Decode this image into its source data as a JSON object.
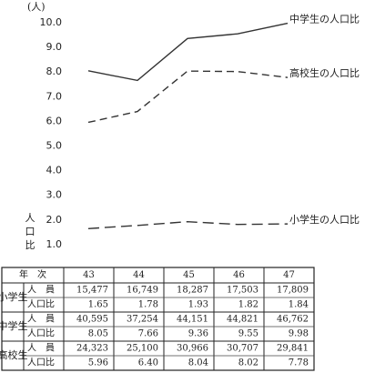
{
  "chart_data": {
    "type": "line",
    "y_unit": "(人)",
    "y_label": "人口比",
    "ylim": [
      0,
      10
    ],
    "yticks": [
      {
        "value": 1,
        "label": "1.0"
      },
      {
        "value": 2,
        "label": "2.0"
      },
      {
        "value": 3,
        "label": "3.0"
      },
      {
        "value": 4,
        "label": "4.0"
      },
      {
        "value": 5,
        "label": "5.0"
      },
      {
        "value": 6,
        "label": "6.0"
      },
      {
        "value": 7,
        "label": "7.0"
      },
      {
        "value": 8,
        "label": "8.0"
      },
      {
        "value": 9,
        "label": "9.0"
      },
      {
        "value": 10,
        "label": "10.0"
      }
    ],
    "series": [
      {
        "name": "中学生の人口比",
        "color": "#333333",
        "dash": "solid",
        "values": [
          8.05,
          7.66,
          9.36,
          9.55,
          9.98
        ]
      },
      {
        "name": "高校生の人口比",
        "color": "#333333",
        "dash": "dashed",
        "values": [
          5.96,
          6.4,
          8.04,
          8.02,
          7.78
        ]
      },
      {
        "name": "小学生の人口比",
        "color": "#333333",
        "dash": "longdash",
        "values": [
          1.65,
          1.78,
          1.93,
          1.82,
          1.84
        ]
      }
    ]
  },
  "table": {
    "header": [
      "年　次",
      "43",
      "44",
      "45",
      "46",
      "47"
    ],
    "groups": [
      {
        "name": "小学生",
        "rows": [
          {
            "label": "人　員",
            "cells": [
              "15,477",
              "16,749",
              "18,287",
              "17,503",
              "17,809"
            ]
          },
          {
            "label": "人口比",
            "cells": [
              "1.65",
              "1.78",
              "1.93",
              "1.82",
              "1.84"
            ]
          }
        ]
      },
      {
        "name": "中学生",
        "rows": [
          {
            "label": "人　員",
            "cells": [
              "40,595",
              "37,254",
              "44,151",
              "44,821",
              "46,762"
            ]
          },
          {
            "label": "人口比",
            "cells": [
              "8.05",
              "7.66",
              "9.36",
              "9.55",
              "9.98"
            ]
          }
        ]
      },
      {
        "name": "高校生",
        "rows": [
          {
            "label": "人　員",
            "cells": [
              "24,323",
              "25,100",
              "30,966",
              "30,707",
              "29,841"
            ]
          },
          {
            "label": "人口比",
            "cells": [
              "5.96",
              "6.40",
              "8.04",
              "8.02",
              "7.78"
            ]
          }
        ]
      }
    ]
  }
}
